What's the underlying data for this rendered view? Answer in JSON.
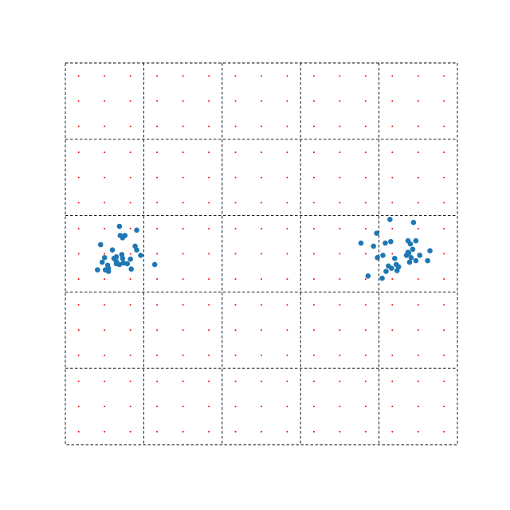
{
  "chart_data": {
    "type": "scatter",
    "title": "",
    "xlabel": "",
    "ylabel": "",
    "xlim": [
      0,
      5
    ],
    "ylim": [
      0,
      5
    ],
    "grid": true,
    "grid_style": "dashed",
    "colors": {
      "points": "#1f77b4",
      "markers": "#ff0000",
      "grid": "#000000",
      "background": "#ffffff"
    },
    "marker_grid": {
      "x": [
        0.17,
        0.5,
        0.83,
        1.17,
        1.5,
        1.83,
        2.17,
        2.5,
        2.83,
        3.17,
        3.5,
        3.83,
        4.17,
        4.5,
        4.83
      ],
      "y": [
        0.17,
        0.5,
        0.83,
        1.17,
        1.5,
        1.83,
        2.17,
        2.5,
        2.83,
        3.17,
        3.5,
        3.83,
        4.17,
        4.5,
        4.83
      ]
    },
    "series": [
      {
        "values": [
          [
            0.69,
            2.86
          ],
          [
            0.7,
            2.74
          ],
          [
            0.73,
            2.71
          ],
          [
            0.76,
            2.74
          ],
          [
            0.45,
            2.62
          ],
          [
            0.6,
            2.55
          ],
          [
            0.5,
            2.45
          ],
          [
            0.47,
            2.39
          ],
          [
            0.65,
            2.4
          ],
          [
            0.55,
            2.31
          ],
          [
            0.41,
            2.29
          ],
          [
            0.51,
            2.29
          ],
          [
            0.54,
            2.35
          ],
          [
            0.65,
            2.46
          ],
          [
            0.72,
            2.49
          ],
          [
            0.73,
            2.44
          ],
          [
            0.69,
            2.36
          ],
          [
            0.65,
            2.37
          ],
          [
            0.74,
            2.38
          ],
          [
            0.79,
            2.37
          ],
          [
            0.84,
            2.3
          ],
          [
            0.83,
            2.43
          ],
          [
            0.89,
            2.6
          ],
          [
            0.91,
            2.55
          ],
          [
            0.96,
            2.48
          ],
          [
            0.91,
            2.81
          ],
          [
            1.14,
            2.36
          ],
          [
            0.62,
            2.44
          ],
          [
            0.55,
            2.27
          ]
        ]
      },
      {
        "values": [
          [
            4.14,
            2.95
          ],
          [
            4.44,
            2.91
          ],
          [
            3.97,
            2.77
          ],
          [
            3.77,
            2.64
          ],
          [
            3.93,
            2.6
          ],
          [
            4.08,
            2.64
          ],
          [
            4.15,
            2.66
          ],
          [
            4.37,
            2.67
          ],
          [
            4.47,
            2.67
          ],
          [
            4.4,
            2.63
          ],
          [
            4.43,
            2.56
          ],
          [
            4.05,
            2.48
          ],
          [
            4.2,
            2.44
          ],
          [
            3.98,
            2.45
          ],
          [
            4.35,
            2.48
          ],
          [
            4.41,
            2.45
          ],
          [
            4.38,
            2.51
          ],
          [
            4.52,
            2.48
          ],
          [
            4.47,
            2.41
          ],
          [
            4.65,
            2.54
          ],
          [
            4.62,
            2.41
          ],
          [
            4.39,
            2.39
          ],
          [
            4.22,
            2.36
          ],
          [
            4.25,
            2.33
          ],
          [
            4.12,
            2.34
          ],
          [
            4.16,
            2.31
          ],
          [
            4.23,
            2.28
          ],
          [
            4.09,
            2.27
          ],
          [
            3.86,
            2.21
          ],
          [
            4.04,
            2.18
          ],
          [
            4.37,
            2.52
          ]
        ]
      }
    ]
  }
}
